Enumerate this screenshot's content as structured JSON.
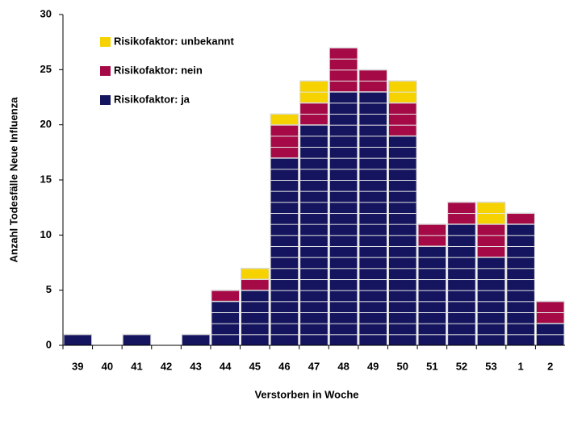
{
  "chart_data": {
    "type": "bar",
    "stacked": true,
    "x_label": "Verstorben in Woche",
    "y_label": "Anzahl Todesfälle Neue Influenza",
    "categories": [
      "39",
      "40",
      "41",
      "42",
      "43",
      "44",
      "45",
      "46",
      "47",
      "48",
      "49",
      "50",
      "51",
      "52",
      "53",
      "1",
      "2"
    ],
    "series": [
      {
        "name": "Risikofaktor: ja",
        "color": "#14145f",
        "values": [
          1,
          0,
          1,
          0,
          1,
          4,
          5,
          17,
          20,
          23,
          23,
          19,
          9,
          11,
          8,
          11,
          2
        ]
      },
      {
        "name": "Risikofaktor: nein",
        "color": "#a50a46",
        "values": [
          0,
          0,
          0,
          0,
          0,
          1,
          1,
          3,
          2,
          4,
          2,
          3,
          2,
          2,
          3,
          1,
          2
        ]
      },
      {
        "name": "Risikofaktor: unbekannt",
        "color": "#f5d200",
        "values": [
          0,
          0,
          0,
          0,
          0,
          0,
          1,
          1,
          2,
          0,
          0,
          2,
          0,
          0,
          2,
          0,
          0
        ]
      }
    ],
    "ylim": [
      0,
      30
    ],
    "yticks": [
      0,
      5,
      10,
      15,
      20,
      25,
      30
    ],
    "grid": false,
    "legend": "top-left"
  }
}
